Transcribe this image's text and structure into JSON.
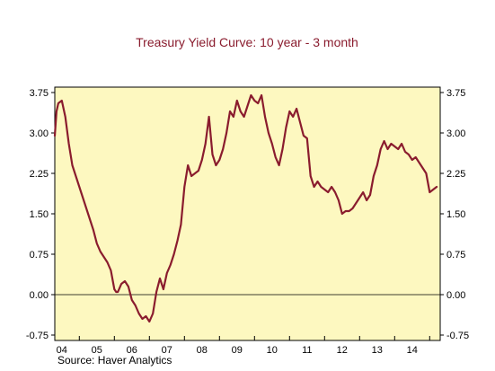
{
  "chart_data": {
    "type": "line",
    "title": "Treasury Yield Curve: 10 year - 3 month",
    "source": "Source: Haver Analytics",
    "xlabel": "",
    "ylabel": "",
    "ylim": [
      -0.75,
      3.75
    ],
    "xlim": [
      2003.8,
      2014.8
    ],
    "y_ticks": [
      -0.75,
      0.0,
      0.75,
      1.5,
      2.25,
      3.0,
      3.75
    ],
    "y_tick_labels": [
      "-0.75",
      "0.00",
      "0.75",
      "1.50",
      "2.25",
      "3.00",
      "3.75"
    ],
    "x_tick_labels": [
      {
        "label": "04",
        "x": 2004.0
      },
      {
        "label": "05",
        "x": 2005.0
      },
      {
        "label": "06",
        "x": 2006.0
      },
      {
        "label": "07",
        "x": 2007.0
      },
      {
        "label": "08",
        "x": 2008.0
      },
      {
        "label": "09",
        "x": 2009.0
      },
      {
        "label": "10",
        "x": 2010.0
      },
      {
        "label": "11",
        "x": 2011.0
      },
      {
        "label": "12",
        "x": 2012.0
      },
      {
        "label": "13",
        "x": 2013.0
      },
      {
        "label": "14",
        "x": 2014.0
      }
    ],
    "reference_line": 0.0,
    "grid": false,
    "colors": {
      "line": "#8a1c2e",
      "plot_background": "#fdf8c0",
      "title": "#8a1c2e"
    },
    "series": [
      {
        "x": [
          2003.8,
          2003.85,
          2003.9,
          2004.0,
          2004.1,
          2004.2,
          2004.3,
          2004.4,
          2004.5,
          2004.6,
          2004.7,
          2004.8,
          2004.9,
          2005.0,
          2005.1,
          2005.2,
          2005.3,
          2005.4,
          2005.5,
          2005.55,
          2005.6,
          2005.7,
          2005.8,
          2005.9,
          2006.0,
          2006.1,
          2006.2,
          2006.3,
          2006.4,
          2006.5,
          2006.6,
          2006.7,
          2006.8,
          2006.9,
          2007.0,
          2007.1,
          2007.2,
          2007.3,
          2007.4,
          2007.5,
          2007.6,
          2007.7,
          2007.8,
          2007.9,
          2008.0,
          2008.1,
          2008.2,
          2008.3,
          2008.4,
          2008.5,
          2008.6,
          2008.7,
          2008.8,
          2008.9,
          2009.0,
          2009.1,
          2009.2,
          2009.3,
          2009.4,
          2009.5,
          2009.6,
          2009.7,
          2009.8,
          2009.9,
          2010.0,
          2010.1,
          2010.2,
          2010.3,
          2010.4,
          2010.5,
          2010.6,
          2010.7,
          2010.8,
          2010.9,
          2011.0,
          2011.1,
          2011.2,
          2011.3,
          2011.4,
          2011.5,
          2011.6,
          2011.7,
          2011.8,
          2011.9,
          2012.0,
          2012.1,
          2012.2,
          2012.3,
          2012.4,
          2012.5,
          2012.6,
          2012.7,
          2012.8,
          2012.9,
          2013.0,
          2013.1,
          2013.2,
          2013.3,
          2013.4,
          2013.5,
          2013.6,
          2013.7,
          2013.8,
          2013.9,
          2014.0,
          2014.1,
          2014.2,
          2014.3,
          2014.4,
          2014.5,
          2014.6,
          2014.7
        ],
        "values": [
          2.95,
          3.4,
          3.55,
          3.6,
          3.3,
          2.8,
          2.4,
          2.2,
          2.0,
          1.8,
          1.6,
          1.4,
          1.2,
          0.95,
          0.8,
          0.7,
          0.6,
          0.45,
          0.1,
          0.05,
          0.05,
          0.2,
          0.25,
          0.15,
          -0.1,
          -0.2,
          -0.35,
          -0.45,
          -0.4,
          -0.5,
          -0.35,
          0.05,
          0.3,
          0.1,
          0.4,
          0.55,
          0.75,
          1.0,
          1.3,
          2.0,
          2.4,
          2.2,
          2.25,
          2.3,
          2.5,
          2.8,
          3.3,
          2.6,
          2.4,
          2.5,
          2.7,
          3.0,
          3.4,
          3.3,
          3.6,
          3.4,
          3.3,
          3.5,
          3.7,
          3.6,
          3.55,
          3.7,
          3.3,
          3.0,
          2.8,
          2.55,
          2.4,
          2.7,
          3.1,
          3.4,
          3.3,
          3.45,
          3.2,
          2.95,
          2.9,
          2.2,
          2.0,
          2.1,
          2.0,
          1.95,
          1.9,
          2.0,
          1.9,
          1.75,
          1.5,
          1.55,
          1.55,
          1.6,
          1.7,
          1.8,
          1.9,
          1.75,
          1.85,
          2.2,
          2.4,
          2.7,
          2.85,
          2.7,
          2.8,
          2.75,
          2.7,
          2.8,
          2.65,
          2.6,
          2.5,
          2.55,
          2.45,
          2.35,
          2.25,
          1.9,
          1.95,
          2.0
        ]
      }
    ]
  }
}
